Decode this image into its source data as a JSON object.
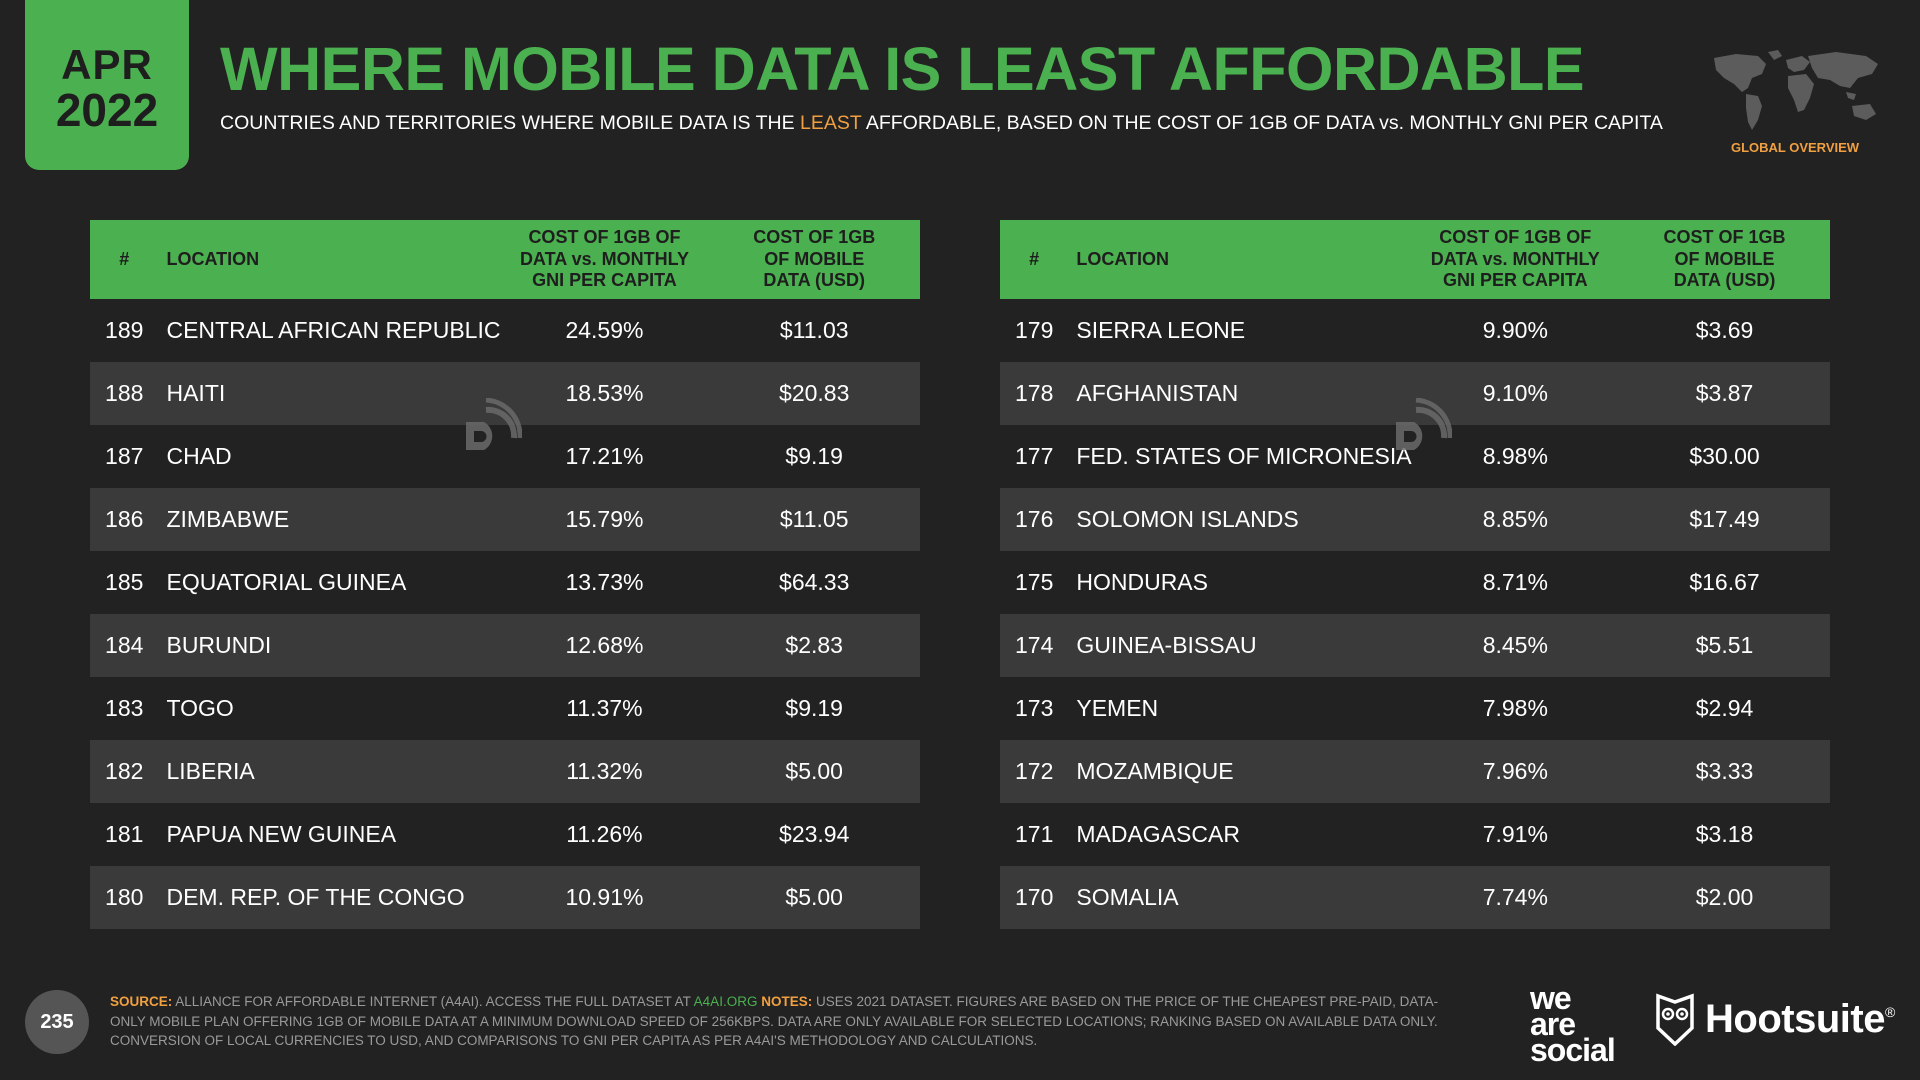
{
  "badge": {
    "month": "APR",
    "year": "2022"
  },
  "title": "WHERE MOBILE DATA IS LEAST AFFORDABLE",
  "subtitle": {
    "before": "COUNTRIES AND TERRITORIES WHERE MOBILE DATA IS THE ",
    "highlight": "LEAST",
    "after": " AFFORDABLE, BASED ON THE COST OF 1GB OF DATA vs. MONTHLY GNI PER CAPITA"
  },
  "map_label": "GLOBAL OVERVIEW",
  "headers": {
    "rank": "#",
    "location": "LOCATION",
    "gni": [
      "COST OF 1GB OF",
      "DATA vs. MONTHLY",
      "GNI PER CAPITA"
    ],
    "usd": [
      "COST OF 1GB",
      "OF MOBILE",
      "DATA (USD)"
    ]
  },
  "left_rows": [
    {
      "rank": "189",
      "location": "CENTRAL AFRICAN REPUBLIC",
      "gni_pct": "24.59%",
      "usd": "$11.03"
    },
    {
      "rank": "188",
      "location": "HAITI",
      "gni_pct": "18.53%",
      "usd": "$20.83"
    },
    {
      "rank": "187",
      "location": "CHAD",
      "gni_pct": "17.21%",
      "usd": "$9.19"
    },
    {
      "rank": "186",
      "location": "ZIMBABWE",
      "gni_pct": "15.79%",
      "usd": "$11.05"
    },
    {
      "rank": "185",
      "location": "EQUATORIAL GUINEA",
      "gni_pct": "13.73%",
      "usd": "$64.33"
    },
    {
      "rank": "184",
      "location": "BURUNDI",
      "gni_pct": "12.68%",
      "usd": "$2.83"
    },
    {
      "rank": "183",
      "location": "TOGO",
      "gni_pct": "11.37%",
      "usd": "$9.19"
    },
    {
      "rank": "182",
      "location": "LIBERIA",
      "gni_pct": "11.32%",
      "usd": "$5.00"
    },
    {
      "rank": "181",
      "location": "PAPUA NEW GUINEA",
      "gni_pct": "11.26%",
      "usd": "$23.94"
    },
    {
      "rank": "180",
      "location": "DEM. REP. OF THE CONGO",
      "gni_pct": "10.91%",
      "usd": "$5.00"
    }
  ],
  "right_rows": [
    {
      "rank": "179",
      "location": "SIERRA LEONE",
      "gni_pct": "9.90%",
      "usd": "$3.69"
    },
    {
      "rank": "178",
      "location": "AFGHANISTAN",
      "gni_pct": "9.10%",
      "usd": "$3.87"
    },
    {
      "rank": "177",
      "location": "FED. STATES OF MICRONESIA",
      "gni_pct": "8.98%",
      "usd": "$30.00"
    },
    {
      "rank": "176",
      "location": "SOLOMON ISLANDS",
      "gni_pct": "8.85%",
      "usd": "$17.49"
    },
    {
      "rank": "175",
      "location": "HONDURAS",
      "gni_pct": "8.71%",
      "usd": "$16.67"
    },
    {
      "rank": "174",
      "location": "GUINEA-BISSAU",
      "gni_pct": "8.45%",
      "usd": "$5.51"
    },
    {
      "rank": "173",
      "location": "YEMEN",
      "gni_pct": "7.98%",
      "usd": "$2.94"
    },
    {
      "rank": "172",
      "location": "MOZAMBIQUE",
      "gni_pct": "7.96%",
      "usd": "$3.33"
    },
    {
      "rank": "171",
      "location": "MADAGASCAR",
      "gni_pct": "7.91%",
      "usd": "$3.18"
    },
    {
      "rank": "170",
      "location": "SOMALIA",
      "gni_pct": "7.74%",
      "usd": "$2.00"
    }
  ],
  "page_number": "235",
  "footer": {
    "source_label": "SOURCE:",
    "source_text": " ALLIANCE FOR AFFORDABLE INTERNET (A4AI). ACCESS THE FULL DATASET AT ",
    "source_link": "A4AI.ORG",
    "notes_label": " NOTES:",
    "notes_text": " USES 2021 DATASET. FIGURES ARE BASED ON THE PRICE OF THE CHEAPEST PRE-PAID, DATA-ONLY MOBILE PLAN OFFERING 1GB OF MOBILE DATA AT A MINIMUM DOWNLOAD SPEED OF 256KBPS. DATA ARE ONLY AVAILABLE FOR SELECTED LOCATIONS; RANKING BASED ON AVAILABLE DATA ONLY. CONVERSION OF LOCAL CURRENCIES TO USD, AND COMPARISONS TO GNI PER CAPITA AS PER A4AI'S METHODOLOGY AND CALCULATIONS."
  },
  "brands": {
    "was_line1": "we",
    "was_line2": "are",
    "was_line3": "social",
    "hootsuite": "Hootsuite",
    "registered": "®"
  },
  "icons": {
    "map": "world-map-icon",
    "watermark": "datareportal-watermark-icon",
    "owl": "hootsuite-owl-icon"
  },
  "colors": {
    "background": "#222222",
    "accent_green": "#4bb04f",
    "accent_orange": "#f0a040",
    "row_alt": "#3a3a3a"
  }
}
